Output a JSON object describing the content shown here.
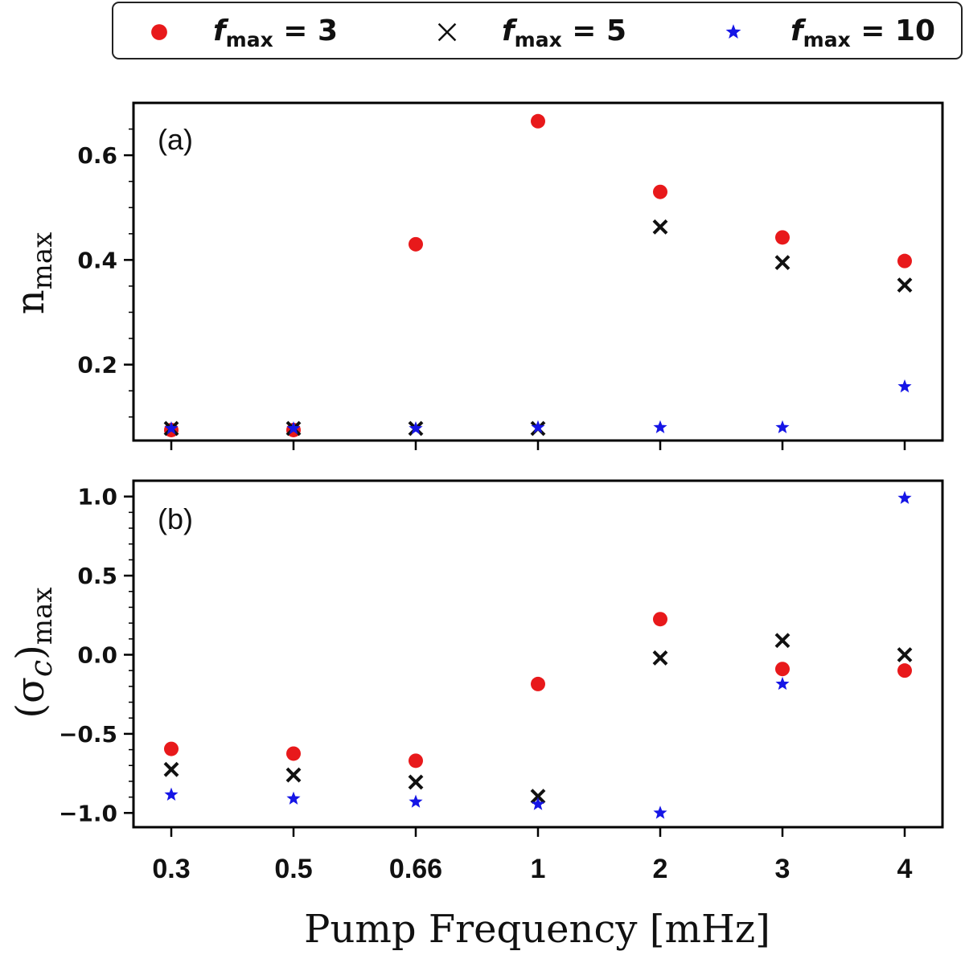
{
  "chart_data": {
    "type": "scatter",
    "x_label": "Pump Frequency [mHz]",
    "categories": [
      "0.3",
      "0.5",
      "0.66",
      "1",
      "2",
      "3",
      "4"
    ],
    "legend": {
      "placement": "top",
      "entries": [
        {
          "series": "fmax = 3",
          "italic_prefix": "f",
          "subscript": "max",
          "suffix": " = 3",
          "marker": "circle",
          "color": "#e8191b"
        },
        {
          "series": "fmax = 5",
          "italic_prefix": "f",
          "subscript": "max",
          "suffix": " = 5",
          "marker": "x",
          "color": "#111111"
        },
        {
          "series": "fmax = 10",
          "italic_prefix": "f",
          "subscript": "max",
          "suffix": " = 10",
          "marker": "star",
          "color": "#1515e6"
        }
      ]
    },
    "panels": [
      {
        "id": "a",
        "label": "(a)",
        "y_label_main": "n",
        "y_label_sub": "max",
        "ylim": [
          0.055,
          0.7
        ],
        "yticks": [
          0.2,
          0.4,
          0.6
        ],
        "ytick_labels": [
          "0.2",
          "0.4",
          "0.6"
        ],
        "minor_step": 0.05,
        "series": [
          {
            "name": "fmax = 3",
            "marker": "circle",
            "color": "#e8191b",
            "values": [
              0.075,
              0.075,
              0.43,
              0.665,
              0.53,
              0.443,
              0.398
            ]
          },
          {
            "name": "fmax = 5",
            "marker": "x",
            "color": "#111111",
            "values": [
              0.078,
              0.078,
              0.078,
              0.078,
              0.463,
              0.395,
              0.352
            ]
          },
          {
            "name": "fmax = 10",
            "marker": "star",
            "color": "#1515e6",
            "values": [
              0.078,
              0.078,
              0.078,
              0.08,
              0.08,
              0.08,
              0.158
            ]
          }
        ]
      },
      {
        "id": "b",
        "label": "(b)",
        "y_label_main": "(σ",
        "y_label_italic": "c",
        "y_label_close": ")",
        "y_label_sub": "max",
        "ylim": [
          -1.09,
          1.1
        ],
        "yticks": [
          -1.0,
          -0.5,
          0.0,
          0.5,
          1.0
        ],
        "ytick_labels": [
          "−1.0",
          "−0.5",
          "0.0",
          "0.5",
          "1.0"
        ],
        "minor_step": 0.1,
        "series": [
          {
            "name": "fmax = 3",
            "marker": "circle",
            "color": "#e8191b",
            "values": [
              -0.595,
              -0.625,
              -0.67,
              -0.185,
              0.225,
              -0.09,
              -0.1
            ]
          },
          {
            "name": "fmax = 5",
            "marker": "x",
            "color": "#111111",
            "values": [
              -0.725,
              -0.76,
              -0.805,
              -0.895,
              -0.02,
              0.09,
              0.0
            ]
          },
          {
            "name": "fmax = 10",
            "marker": "star",
            "color": "#1515e6",
            "values": [
              -0.885,
              -0.91,
              -0.93,
              -0.945,
              -1.0,
              -0.185,
              0.99
            ]
          }
        ]
      }
    ]
  }
}
